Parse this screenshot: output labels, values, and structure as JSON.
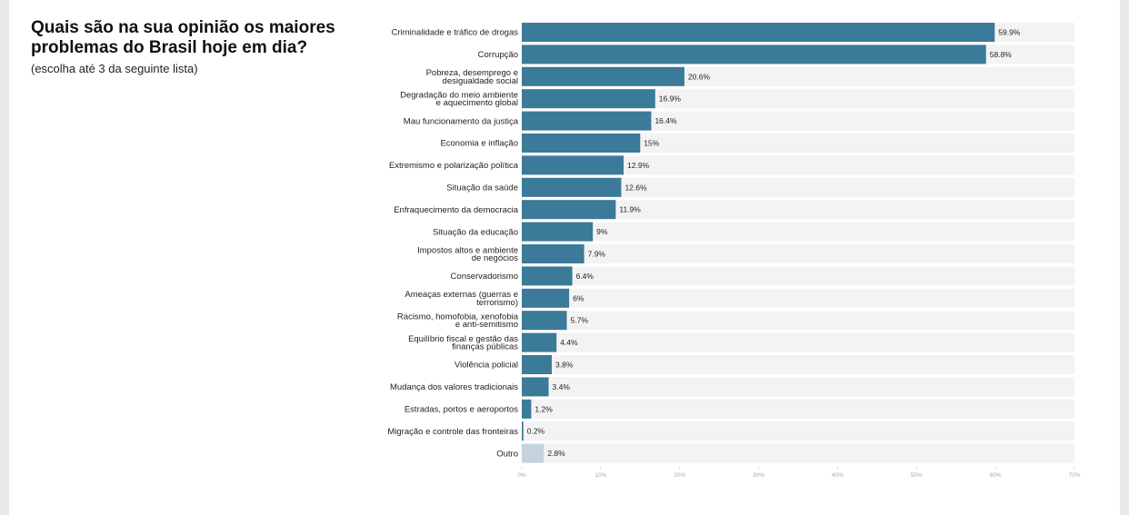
{
  "header": {
    "title": "Quais são na sua opinião os maiores problemas do Brasil hoje em dia?",
    "subtitle": "(escolha até 3 da seguinte lista)"
  },
  "colors": {
    "bar": "#3b7a99",
    "bar_other": "#c4d3dc",
    "track": "#f3f3f3",
    "text": "#222222"
  },
  "chart_data": {
    "type": "bar",
    "orientation": "horizontal",
    "xlim": [
      0,
      70
    ],
    "ticks": [
      0,
      10,
      20,
      30,
      40,
      50,
      60,
      70
    ],
    "tick_labels": [
      "0%",
      "10%",
      "20%",
      "30%",
      "40%",
      "50%",
      "60%",
      "70%"
    ],
    "grid": false,
    "categories": [
      "Criminalidade e tráfico de drogas",
      "Corrupção",
      "Pobreza, desemprego e desigualdade social",
      "Degradação do meio ambiente e aquecimento global",
      "Mau funcionamento da justiça",
      "Economia e inflação",
      "Extremismo e polarização política",
      "Situação da saúde",
      "Enfraquecimento da democracia",
      "Situação da educação",
      "Impostos altos e ambiente de negócios",
      "Conservadorismo",
      "Ameaças externas (guerras e terrorismo)",
      "Racismo, homofobia, xenofobia e anti-semitismo",
      "Equilíbrio fiscal e gestão das finanças públicas",
      "Violência policial",
      "Mudança dos valores tradicionais",
      "Estradas, portos e aeroportos",
      "Migração e controle das fronteiras",
      "Outro"
    ],
    "label_lines": [
      [
        "Criminalidade e tráfico de drogas"
      ],
      [
        "Corrupção"
      ],
      [
        "Pobreza, desemprego e",
        "desigualdade social"
      ],
      [
        "Degradação do meio ambiente",
        "e aquecimento global"
      ],
      [
        "Mau funcionamento da justiça"
      ],
      [
        "Economia e inflação"
      ],
      [
        "Extremismo e polarização política"
      ],
      [
        "Situação da saúde"
      ],
      [
        "Enfraquecimento da democracia"
      ],
      [
        "Situação da educação"
      ],
      [
        "Impostos altos e ambiente",
        "de negócios"
      ],
      [
        "Conservadorismo"
      ],
      [
        "Ameaças externas (guerras e",
        "terrorismo)"
      ],
      [
        "Racismo, homofobia, xenofobia",
        "e anti-semitismo"
      ],
      [
        "Equilíbrio fiscal e gestão das",
        "finanças públicas"
      ],
      [
        "Violência policial"
      ],
      [
        "Mudança dos valores tradicionais"
      ],
      [
        "Estradas, portos e aeroportos"
      ],
      [
        "Migração e controle das fronteiras"
      ],
      [
        "Outro"
      ]
    ],
    "values": [
      59.9,
      58.8,
      20.6,
      16.9,
      16.4,
      15,
      12.9,
      12.6,
      11.9,
      9,
      7.9,
      6.4,
      6,
      5.7,
      4.4,
      3.8,
      3.4,
      1.2,
      0.2,
      2.8
    ],
    "value_labels": [
      "59.9%",
      "58.8%",
      "20.6%",
      "16.9%",
      "16.4%",
      "15%",
      "12.9%",
      "12.6%",
      "11.9%",
      "9%",
      "7.9%",
      "6.4%",
      "6%",
      "5.7%",
      "4.4%",
      "3.8%",
      "3.4%",
      "1.2%",
      "0.2%",
      "2.8%"
    ],
    "highlight_other": "Outro"
  }
}
